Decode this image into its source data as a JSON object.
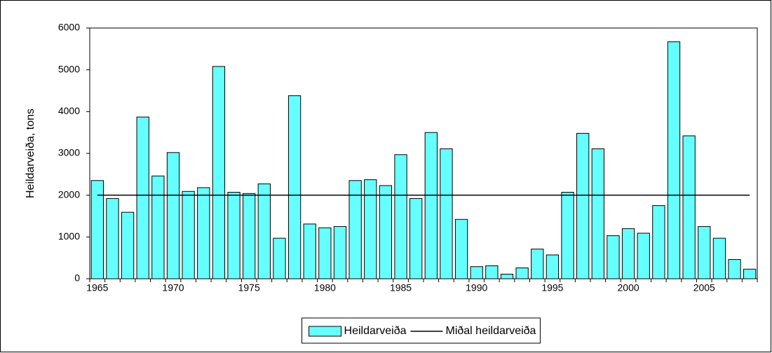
{
  "chart_data": {
    "type": "bar",
    "y_label": "Heildarveiða, tons",
    "categories": [
      "1965",
      null,
      null,
      null,
      null,
      "1970",
      null,
      null,
      null,
      null,
      "1975",
      null,
      null,
      null,
      null,
      "1980",
      null,
      null,
      null,
      null,
      "1985",
      null,
      null,
      null,
      null,
      "1990",
      null,
      null,
      null,
      null,
      "1995",
      null,
      null,
      null,
      null,
      "2000",
      null,
      null,
      null,
      null,
      "2005",
      null,
      null,
      null
    ],
    "series": [
      {
        "name": "Heildarveiða",
        "type": "bar",
        "color": "#66ffff",
        "values": [
          2350,
          1920,
          1590,
          3870,
          2460,
          3020,
          2090,
          2180,
          5080,
          2070,
          2040,
          2270,
          970,
          4380,
          1310,
          1220,
          1250,
          2350,
          2370,
          2230,
          2970,
          1920,
          3500,
          3110,
          1420,
          290,
          310,
          110,
          260,
          710,
          570,
          2070,
          3480,
          3110,
          1030,
          1200,
          1090,
          1750,
          5670,
          3420,
          1250,
          970,
          460,
          230
        ]
      },
      {
        "name": "Miðal heildarveiða",
        "type": "line",
        "color": "#000000",
        "values": [
          2000,
          2000,
          2000,
          2000,
          2000,
          2000,
          2000,
          2000,
          2000,
          2000,
          2000,
          2000,
          2000,
          2000,
          2000,
          2000,
          2000,
          2000,
          2000,
          2000,
          2000,
          2000,
          2000,
          2000,
          2000,
          2000,
          2000,
          2000,
          2000,
          2000,
          2000,
          2000,
          2000,
          2000,
          2000,
          2000,
          2000,
          2000,
          2000,
          2000,
          2000,
          2000,
          2000,
          2000
        ]
      }
    ],
    "ylim": [
      0,
      6000
    ],
    "yticks": [
      0,
      1000,
      2000,
      3000,
      4000,
      5000,
      6000
    ],
    "grid": false,
    "legend": "bottom"
  }
}
